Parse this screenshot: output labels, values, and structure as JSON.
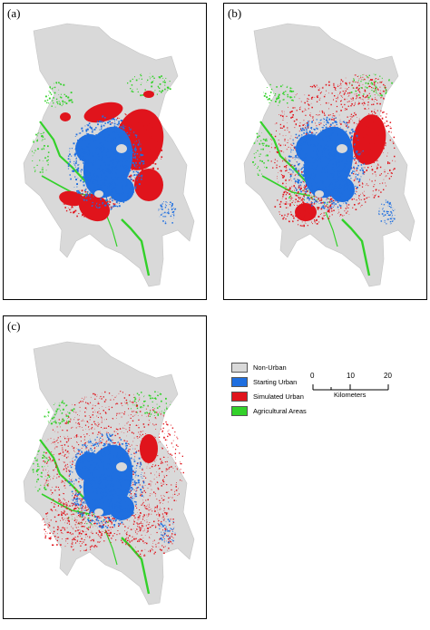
{
  "panels": [
    {
      "label": "(a)",
      "pattern": "a"
    },
    {
      "label": "(b)",
      "pattern": "b"
    },
    {
      "label": "(c)",
      "pattern": "c"
    }
  ],
  "legend": {
    "items": [
      {
        "label": "Non-Urban",
        "color": "#d9d9d9"
      },
      {
        "label": "Starting Urban",
        "color": "#1f6fe0"
      },
      {
        "label": "Simulated Urban",
        "color": "#e0141c"
      },
      {
        "label": "Agricultural Areas",
        "color": "#33d12a"
      }
    ]
  },
  "scalebar": {
    "ticks": [
      "0",
      "10",
      "20"
    ],
    "unit": "Kilometers"
  }
}
